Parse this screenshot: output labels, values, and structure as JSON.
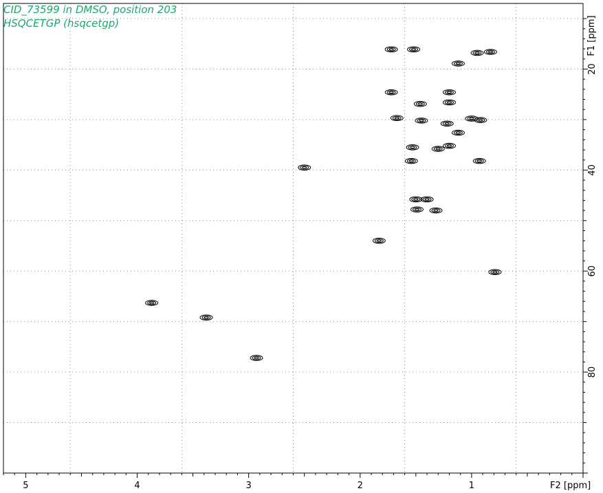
{
  "title": {
    "line1": "CID_73599 in DMSO, position 203",
    "line2": "HSQCETGP (hsqcetgp)",
    "color": "#1aa86a"
  },
  "chart_data": {
    "type": "scatter",
    "subtype": "2D NMR contour plot (HSQC)",
    "xlabel": "F2 [ppm]",
    "ylabel": "F1 [ppm]",
    "xlim": [
      5.2,
      0.0
    ],
    "ylim": [
      100,
      7
    ],
    "x_reversed": true,
    "x_ticks": [
      5,
      4,
      3,
      2,
      1
    ],
    "x_tick_labels": [
      "5",
      "4",
      "3",
      "2",
      "1"
    ],
    "y_ticks": [
      20,
      40,
      60,
      80
    ],
    "y_tick_labels": [
      "20",
      "40",
      "60",
      "80"
    ],
    "grid": true,
    "grid_style": "dotted",
    "x_grid": [
      4.6,
      3.6,
      2.6,
      1.6,
      0.6
    ],
    "y_grid": [
      10,
      20,
      30,
      40,
      50,
      60,
      70,
      80,
      90
    ],
    "contour_color": "#000000",
    "points": [
      {
        "x": 1.72,
        "y": 16.1
      },
      {
        "x": 1.52,
        "y": 16.1
      },
      {
        "x": 0.95,
        "y": 16.8
      },
      {
        "x": 0.83,
        "y": 16.6
      },
      {
        "x": 1.12,
        "y": 18.9
      },
      {
        "x": 1.72,
        "y": 24.6
      },
      {
        "x": 1.2,
        "y": 24.6
      },
      {
        "x": 1.2,
        "y": 26.6
      },
      {
        "x": 1.46,
        "y": 26.9
      },
      {
        "x": 1.67,
        "y": 29.7
      },
      {
        "x": 1.45,
        "y": 30.2
      },
      {
        "x": 1.22,
        "y": 30.8
      },
      {
        "x": 1.12,
        "y": 32.6
      },
      {
        "x": 1.0,
        "y": 29.8
      },
      {
        "x": 0.92,
        "y": 30.1
      },
      {
        "x": 1.53,
        "y": 35.5
      },
      {
        "x": 1.3,
        "y": 35.8
      },
      {
        "x": 1.2,
        "y": 35.2
      },
      {
        "x": 1.54,
        "y": 38.2
      },
      {
        "x": 0.93,
        "y": 38.2
      },
      {
        "x": 2.5,
        "y": 39.5
      },
      {
        "x": 1.5,
        "y": 45.8
      },
      {
        "x": 1.4,
        "y": 45.8
      },
      {
        "x": 1.49,
        "y": 47.8
      },
      {
        "x": 1.32,
        "y": 48.0
      },
      {
        "x": 1.83,
        "y": 54.0
      },
      {
        "x": 0.79,
        "y": 60.2
      },
      {
        "x": 3.87,
        "y": 66.3
      },
      {
        "x": 3.38,
        "y": 69.2
      },
      {
        "x": 2.93,
        "y": 77.2
      }
    ]
  }
}
